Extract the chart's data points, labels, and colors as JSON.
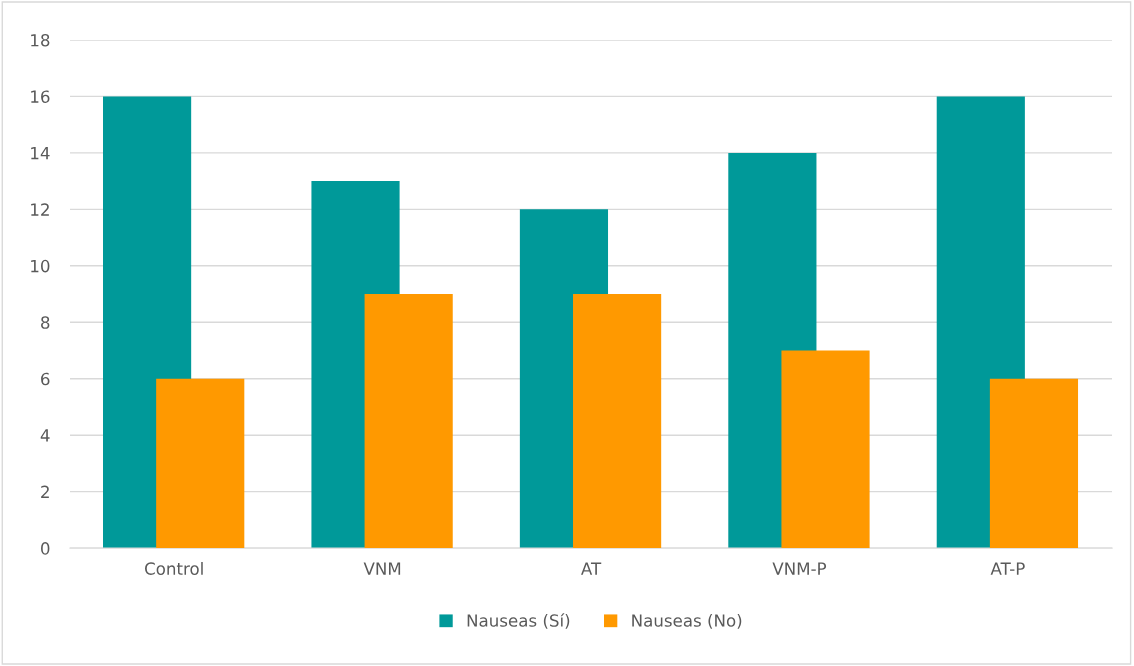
{
  "chart_data": {
    "type": "bar",
    "categories": [
      "Control",
      "VNM",
      "AT",
      "VNM-P",
      "AT-P"
    ],
    "series": [
      {
        "name": "Nauseas (Sí)",
        "color": "#009999",
        "values": [
          16,
          13,
          12,
          14,
          16
        ]
      },
      {
        "name": "Nauseas (No)",
        "color": "#ff9900",
        "values": [
          6,
          9,
          9,
          7,
          6
        ]
      }
    ],
    "ylim": [
      0,
      18
    ],
    "yticks": [
      0,
      2,
      4,
      6,
      8,
      10,
      12,
      14,
      16,
      18
    ],
    "grid": "y",
    "legend": "bottom"
  }
}
